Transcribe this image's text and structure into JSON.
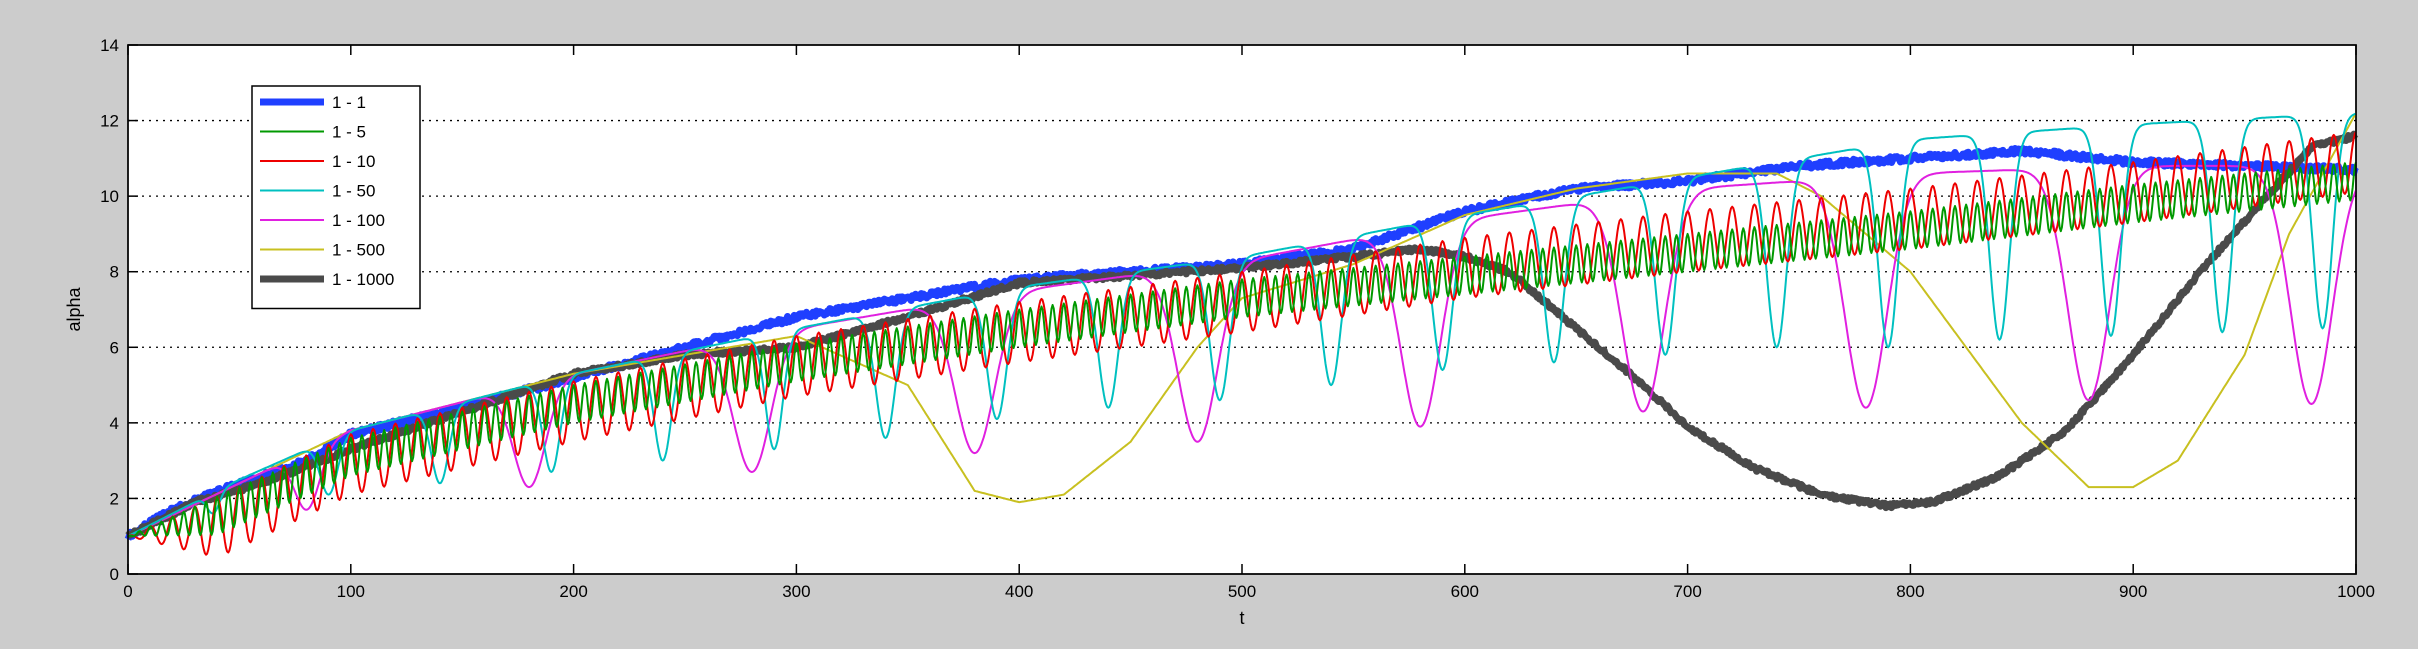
{
  "chart_data": {
    "type": "line",
    "title": "",
    "xlabel": "t",
    "ylabel": "alpha",
    "xlim": [
      0,
      1000
    ],
    "ylim": [
      0,
      14
    ],
    "xticks": [
      0,
      100,
      200,
      300,
      400,
      500,
      600,
      700,
      800,
      900,
      1000
    ],
    "yticks": [
      0,
      2,
      4,
      6,
      8,
      10,
      12,
      14
    ],
    "grid": "horizontal dotted",
    "legend_position": "top-left",
    "series": [
      {
        "name": "1 - 1",
        "color": "#1f3fff",
        "width": 7,
        "trend": [
          [
            0,
            1.0
          ],
          [
            20,
            1.7
          ],
          [
            50,
            2.4
          ],
          [
            80,
            3.0
          ],
          [
            100,
            3.7
          ],
          [
            150,
            4.4
          ],
          [
            200,
            5.2
          ],
          [
            250,
            6.0
          ],
          [
            300,
            6.8
          ],
          [
            350,
            7.3
          ],
          [
            400,
            7.8
          ],
          [
            450,
            8.0
          ],
          [
            500,
            8.2
          ],
          [
            550,
            8.6
          ],
          [
            600,
            9.6
          ],
          [
            650,
            10.2
          ],
          [
            700,
            10.4
          ],
          [
            750,
            10.8
          ],
          [
            800,
            11.0
          ],
          [
            850,
            11.2
          ],
          [
            900,
            10.9
          ],
          [
            950,
            10.8
          ],
          [
            1000,
            10.7
          ]
        ],
        "jitter": 0.08,
        "osc_period": 0,
        "osc_amp": 0,
        "dips": []
      },
      {
        "name": "1 - 5",
        "color": "#009900",
        "width": 2,
        "trend": [
          [
            0,
            1.0
          ],
          [
            50,
            2.3
          ],
          [
            100,
            3.6
          ],
          [
            200,
            5.0
          ],
          [
            300,
            6.1
          ],
          [
            400,
            7.0
          ],
          [
            500,
            7.8
          ],
          [
            600,
            8.4
          ],
          [
            700,
            9.0
          ],
          [
            800,
            9.6
          ],
          [
            900,
            10.3
          ],
          [
            1000,
            10.9
          ]
        ],
        "jitter": 0.0,
        "osc_period": 5,
        "osc_amp": 1.0,
        "dips": []
      },
      {
        "name": "1 - 10",
        "color": "#ee0000",
        "width": 2,
        "trend": [
          [
            0,
            1.0
          ],
          [
            50,
            2.3
          ],
          [
            100,
            3.7
          ],
          [
            200,
            5.1
          ],
          [
            300,
            6.3
          ],
          [
            400,
            7.2
          ],
          [
            500,
            8.0
          ],
          [
            600,
            8.9
          ],
          [
            700,
            9.6
          ],
          [
            800,
            10.2
          ],
          [
            900,
            10.9
          ],
          [
            1000,
            11.7
          ]
        ],
        "jitter": 0.0,
        "osc_period": 10,
        "osc_amp": 1.6,
        "dips": []
      },
      {
        "name": "1 - 50",
        "color": "#00c0c0",
        "width": 2,
        "trend": [
          [
            0,
            1.0
          ],
          [
            50,
            2.5
          ],
          [
            100,
            3.8
          ],
          [
            200,
            5.3
          ],
          [
            300,
            6.5
          ],
          [
            400,
            7.6
          ],
          [
            500,
            8.4
          ],
          [
            600,
            9.5
          ],
          [
            700,
            10.5
          ],
          [
            800,
            11.5
          ],
          [
            900,
            11.9
          ],
          [
            1000,
            12.2
          ]
        ],
        "jitter": 0.0,
        "osc_period": 0,
        "osc_amp": 0,
        "dips": [
          [
            38,
            1.6,
            5
          ],
          [
            90,
            2.1,
            7
          ],
          [
            140,
            2.4,
            7
          ],
          [
            190,
            2.7,
            7
          ],
          [
            240,
            3.0,
            7
          ],
          [
            290,
            3.3,
            7
          ],
          [
            340,
            3.6,
            8
          ],
          [
            390,
            4.1,
            8
          ],
          [
            440,
            4.4,
            8
          ],
          [
            490,
            4.6,
            8
          ],
          [
            540,
            5.0,
            8
          ],
          [
            590,
            5.4,
            8
          ],
          [
            640,
            5.6,
            8
          ],
          [
            690,
            5.8,
            8
          ],
          [
            740,
            6.0,
            8
          ],
          [
            790,
            6.0,
            8
          ],
          [
            840,
            6.2,
            8
          ],
          [
            890,
            6.3,
            8
          ],
          [
            940,
            6.4,
            8
          ],
          [
            985,
            6.5,
            8
          ]
        ]
      },
      {
        "name": "1 - 100",
        "color": "#e020e0",
        "width": 2,
        "trend": [
          [
            0,
            1.0
          ],
          [
            50,
            2.4
          ],
          [
            100,
            3.8
          ],
          [
            200,
            5.3
          ],
          [
            300,
            6.5
          ],
          [
            400,
            7.5
          ],
          [
            500,
            8.3
          ],
          [
            600,
            9.4
          ],
          [
            700,
            10.2
          ],
          [
            800,
            10.6
          ],
          [
            900,
            10.8
          ],
          [
            1000,
            10.8
          ]
        ],
        "jitter": 0.0,
        "osc_period": 0,
        "osc_amp": 0,
        "dips": [
          [
            80,
            1.7,
            10
          ],
          [
            180,
            2.3,
            13
          ],
          [
            280,
            2.7,
            15
          ],
          [
            380,
            3.2,
            16
          ],
          [
            480,
            3.5,
            16
          ],
          [
            580,
            3.9,
            16
          ],
          [
            680,
            4.3,
            17
          ],
          [
            780,
            4.4,
            17
          ],
          [
            880,
            4.6,
            17
          ],
          [
            980,
            4.5,
            17
          ]
        ]
      },
      {
        "name": "1 - 500",
        "color": "#c8c020",
        "width": 2,
        "trend": [
          [
            0,
            1.0
          ],
          [
            50,
            2.4
          ],
          [
            100,
            3.8
          ],
          [
            200,
            5.3
          ],
          [
            300,
            6.3
          ],
          [
            350,
            5.0
          ],
          [
            380,
            2.2
          ],
          [
            400,
            1.9
          ],
          [
            420,
            2.1
          ],
          [
            450,
            3.5
          ],
          [
            480,
            6.0
          ],
          [
            500,
            7.3
          ],
          [
            550,
            8.2
          ],
          [
            600,
            9.5
          ],
          [
            650,
            10.2
          ],
          [
            700,
            10.6
          ],
          [
            740,
            10.6
          ],
          [
            760,
            10.0
          ],
          [
            800,
            8.0
          ],
          [
            850,
            4.0
          ],
          [
            880,
            2.3
          ],
          [
            900,
            2.3
          ],
          [
            920,
            3.0
          ],
          [
            950,
            5.8
          ],
          [
            970,
            9.0
          ],
          [
            1000,
            12.2
          ]
        ],
        "jitter": 0.0,
        "osc_period": 0,
        "osc_amp": 0,
        "dips": []
      },
      {
        "name": "1 - 1000",
        "color": "#4a4a4a",
        "width": 7,
        "trend": [
          [
            0,
            1.0
          ],
          [
            30,
            1.9
          ],
          [
            60,
            2.4
          ],
          [
            100,
            3.3
          ],
          [
            150,
            4.3
          ],
          [
            200,
            5.3
          ],
          [
            250,
            5.8
          ],
          [
            300,
            6.0
          ],
          [
            350,
            6.8
          ],
          [
            400,
            7.7
          ],
          [
            450,
            7.9
          ],
          [
            500,
            8.1
          ],
          [
            550,
            8.4
          ],
          [
            580,
            8.6
          ],
          [
            600,
            8.4
          ],
          [
            620,
            8.0
          ],
          [
            650,
            6.5
          ],
          [
            680,
            5.0
          ],
          [
            700,
            3.9
          ],
          [
            730,
            2.8
          ],
          [
            760,
            2.1
          ],
          [
            790,
            1.8
          ],
          [
            810,
            1.9
          ],
          [
            840,
            2.6
          ],
          [
            870,
            3.8
          ],
          [
            900,
            5.8
          ],
          [
            930,
            8.0
          ],
          [
            960,
            10.0
          ],
          [
            980,
            11.3
          ],
          [
            1000,
            11.6
          ]
        ],
        "jitter": 0.06,
        "osc_period": 0,
        "osc_amp": 0,
        "dips": []
      }
    ]
  }
}
